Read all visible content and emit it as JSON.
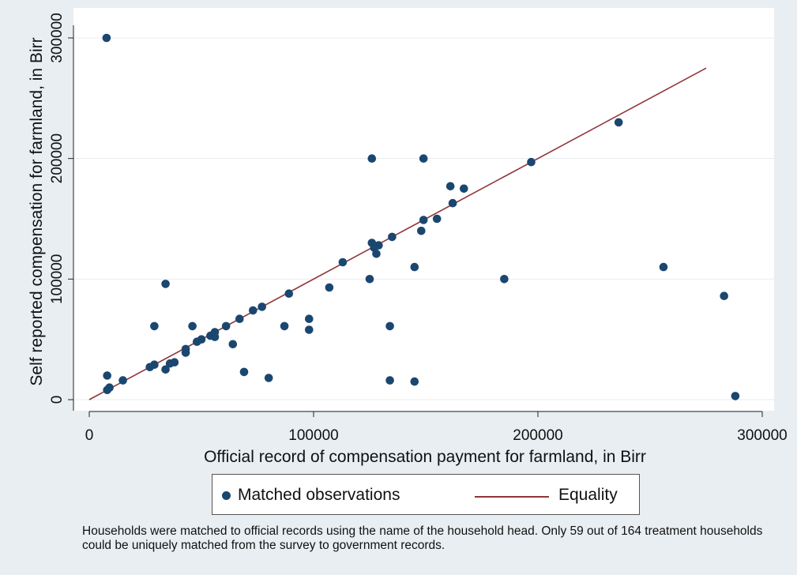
{
  "chart_data": {
    "type": "scatter",
    "xlabel": "Official record of compensation payment for farmland, in Birr",
    "ylabel": "Self reported compensation for farmland, in Birr",
    "xlim": [
      0,
      300000
    ],
    "ylim": [
      0,
      300000
    ],
    "xticks": [
      {
        "value": 0,
        "label": "0"
      },
      {
        "value": 100000,
        "label": "100000"
      },
      {
        "value": 200000,
        "label": "200000"
      },
      {
        "value": 300000,
        "label": "300000"
      }
    ],
    "yticks": [
      {
        "value": 0,
        "label": "0"
      },
      {
        "value": 100000,
        "label": "100000"
      },
      {
        "value": 200000,
        "label": "200000"
      },
      {
        "value": 300000,
        "label": "300000"
      }
    ],
    "grid": true,
    "legend_position": "bottom",
    "series": [
      {
        "name": "Matched observations",
        "kind": "scatter",
        "color": "#1a476f",
        "points": [
          [
            7700,
            300000
          ],
          [
            236000,
            230000
          ],
          [
            126000,
            200000
          ],
          [
            149000,
            200000
          ],
          [
            197000,
            197000
          ],
          [
            161000,
            177000
          ],
          [
            167000,
            175000
          ],
          [
            162000,
            163000
          ],
          [
            155000,
            150000
          ],
          [
            149000,
            149000
          ],
          [
            148000,
            140000
          ],
          [
            135000,
            135000
          ],
          [
            126000,
            130000
          ],
          [
            129000,
            128000
          ],
          [
            127000,
            126000
          ],
          [
            128000,
            121000
          ],
          [
            113000,
            114000
          ],
          [
            145000,
            110000
          ],
          [
            256000,
            110000
          ],
          [
            34000,
            96000
          ],
          [
            125000,
            100000
          ],
          [
            185000,
            100000
          ],
          [
            107000,
            93000
          ],
          [
            89000,
            88000
          ],
          [
            283000,
            86000
          ],
          [
            77000,
            77000
          ],
          [
            73000,
            74000
          ],
          [
            67000,
            67000
          ],
          [
            98000,
            67000
          ],
          [
            29000,
            61000
          ],
          [
            46000,
            61000
          ],
          [
            61000,
            61000
          ],
          [
            87000,
            61000
          ],
          [
            134000,
            61000
          ],
          [
            98000,
            58000
          ],
          [
            56000,
            56000
          ],
          [
            54000,
            53000
          ],
          [
            56000,
            52000
          ],
          [
            50000,
            50000
          ],
          [
            48000,
            48000
          ],
          [
            64000,
            46000
          ],
          [
            43000,
            42000
          ],
          [
            43000,
            39000
          ],
          [
            38000,
            31000
          ],
          [
            36000,
            30000
          ],
          [
            29000,
            29000
          ],
          [
            27000,
            27000
          ],
          [
            34000,
            25000
          ],
          [
            69000,
            23000
          ],
          [
            8000,
            20000
          ],
          [
            80000,
            18000
          ],
          [
            15000,
            16000
          ],
          [
            134000,
            16000
          ],
          [
            145000,
            15000
          ],
          [
            9000,
            10000
          ],
          [
            8000,
            8000
          ],
          [
            288000,
            3000
          ]
        ]
      },
      {
        "name": "Equality",
        "kind": "line",
        "color": "#90353b",
        "points": [
          [
            0,
            0
          ],
          [
            275000,
            275000
          ]
        ]
      }
    ],
    "note": "Households were matched to official records using the name of the household head. Only 59 out of 164 treatment households could be uniquely  matched from the survey to government records."
  }
}
